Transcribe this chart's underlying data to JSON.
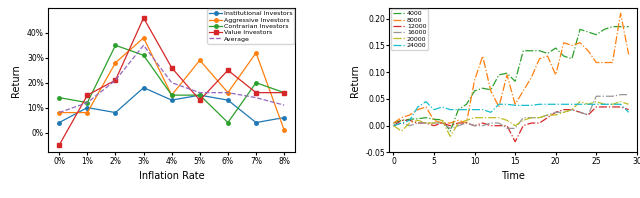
{
  "left": {
    "x_labels": [
      "0%",
      "1%",
      "2%",
      "3%",
      "4%",
      "5%",
      "6%",
      "7%",
      "8%"
    ],
    "institutional": [
      4,
      10,
      8,
      18,
      13,
      15,
      13,
      4,
      6
    ],
    "aggressive": [
      8,
      8,
      28,
      38,
      15,
      29,
      16,
      32,
      1
    ],
    "contrarian": [
      14,
      12,
      35,
      31,
      15,
      15,
      4,
      20,
      16
    ],
    "value": [
      -5,
      15,
      21,
      46,
      26,
      13,
      25,
      16,
      16
    ],
    "average": [
      8,
      12,
      21,
      35,
      20,
      16,
      16,
      14,
      11
    ],
    "colors": {
      "institutional": "#1f77b4",
      "aggressive": "#ff7f0e",
      "contrarian": "#2ca02c",
      "value": "#d62728",
      "average": "#9467bd"
    },
    "xlabel": "Inflation Rate",
    "ylabel": "Return",
    "yticks": [
      0,
      10,
      20,
      30,
      40
    ],
    "ytick_labels": [
      "0%",
      "10%",
      "20%",
      "30%",
      "40%"
    ],
    "ylim": [
      -8,
      50
    ]
  },
  "right": {
    "t4000": [
      0.005,
      0.01,
      0.012,
      0.013,
      0.015,
      0.012,
      0.011,
      -0.01,
      0.03,
      0.04,
      0.065,
      0.07,
      0.067,
      0.095,
      0.098,
      0.083,
      0.14,
      0.14,
      0.14,
      0.135,
      0.145,
      0.13,
      0.125,
      0.18,
      0.175,
      0.17,
      0.18,
      0.185,
      0.185,
      0.185
    ],
    "t8000": [
      0.005,
      0.015,
      0.02,
      0.03,
      0.035,
      0.01,
      0.005,
      0.005,
      0.01,
      0.005,
      0.085,
      0.13,
      0.065,
      0.035,
      0.095,
      0.04,
      0.065,
      0.09,
      0.125,
      0.13,
      0.095,
      0.155,
      0.15,
      0.155,
      0.14,
      0.118,
      0.118,
      0.118,
      0.21,
      0.133
    ],
    "t12000": [
      0.0,
      0.01,
      0.01,
      0.005,
      0.005,
      0.0,
      0.005,
      0.0,
      0.005,
      0.005,
      0.0,
      0.005,
      0.0,
      0.0,
      0.0,
      -0.03,
      0.0,
      0.005,
      0.005,
      0.015,
      0.025,
      0.03,
      0.03,
      0.025,
      0.02,
      0.035,
      0.035,
      0.035,
      0.035,
      0.03
    ],
    "t16000": [
      0.0,
      0.005,
      0.0,
      0.005,
      0.005,
      0.005,
      0.005,
      -0.005,
      0.0,
      0.005,
      0.0,
      0.0,
      0.005,
      0.005,
      -0.005,
      -0.005,
      0.015,
      0.015,
      0.015,
      0.02,
      0.025,
      0.025,
      0.03,
      0.025,
      0.02,
      0.055,
      0.055,
      0.055,
      0.058,
      0.058
    ],
    "t20000": [
      0.0,
      -0.01,
      0.005,
      0.01,
      0.005,
      0.005,
      0.01,
      -0.02,
      0.005,
      0.01,
      0.015,
      0.015,
      0.015,
      0.015,
      0.01,
      0.0,
      0.01,
      0.015,
      0.015,
      0.02,
      0.02,
      0.025,
      0.03,
      0.045,
      0.04,
      0.045,
      0.04,
      0.04,
      0.045,
      0.04
    ],
    "t24000": [
      0.0,
      0.005,
      0.01,
      0.035,
      0.045,
      0.03,
      0.035,
      0.03,
      0.03,
      0.03,
      0.03,
      0.03,
      0.025,
      0.04,
      0.04,
      0.038,
      0.038,
      0.038,
      0.04,
      0.04,
      0.04,
      0.04,
      0.04,
      0.04,
      0.04,
      0.04,
      0.04,
      0.04,
      0.04,
      0.025
    ],
    "colors": {
      "t4000": "#2ca02c",
      "t8000": "#ff7f0e",
      "t12000": "#d62728",
      "t16000": "#969696",
      "t20000": "#bcbd22",
      "t24000": "#17becf"
    },
    "xlabel": "Time",
    "ylabel": "Return",
    "ylim": [
      -0.05,
      0.22
    ],
    "yticks": [
      -0.05,
      0.0,
      0.05,
      0.1,
      0.15,
      0.2
    ]
  }
}
